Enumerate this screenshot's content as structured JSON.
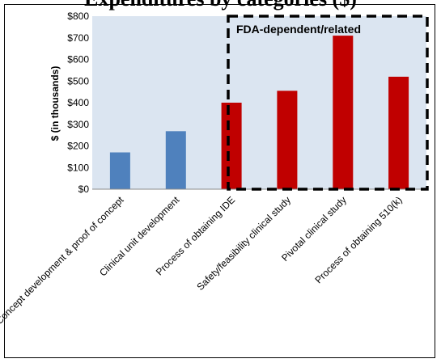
{
  "page": {
    "title": "Expenditures by categories ($)"
  },
  "chart_data": {
    "type": "bar",
    "title": "",
    "xlabel": "",
    "ylabel": "$ (in thousands)",
    "ylim": [
      0,
      800
    ],
    "yticks": [
      "$0",
      "$100",
      "$200",
      "$300",
      "$400",
      "$500",
      "$600",
      "$700",
      "$800"
    ],
    "grid": false,
    "categories": [
      "Concept development & proof of concept",
      "Clinical unit development",
      "Process of obtaining IDE",
      "Safety/feasibility clinical study",
      "Pivotal clinical study",
      "Process of obtaining 510(k)"
    ],
    "values": [
      170,
      268,
      400,
      455,
      710,
      520
    ],
    "bar_colors": [
      "#4f81bd",
      "#4f81bd",
      "#c00000",
      "#c00000",
      "#c00000",
      "#c00000"
    ],
    "plot_background": "#dbe5f1",
    "annotation": {
      "text": "FDA-dependent/related",
      "spans_categories": [
        2,
        5
      ],
      "style": "dashed-box"
    }
  }
}
